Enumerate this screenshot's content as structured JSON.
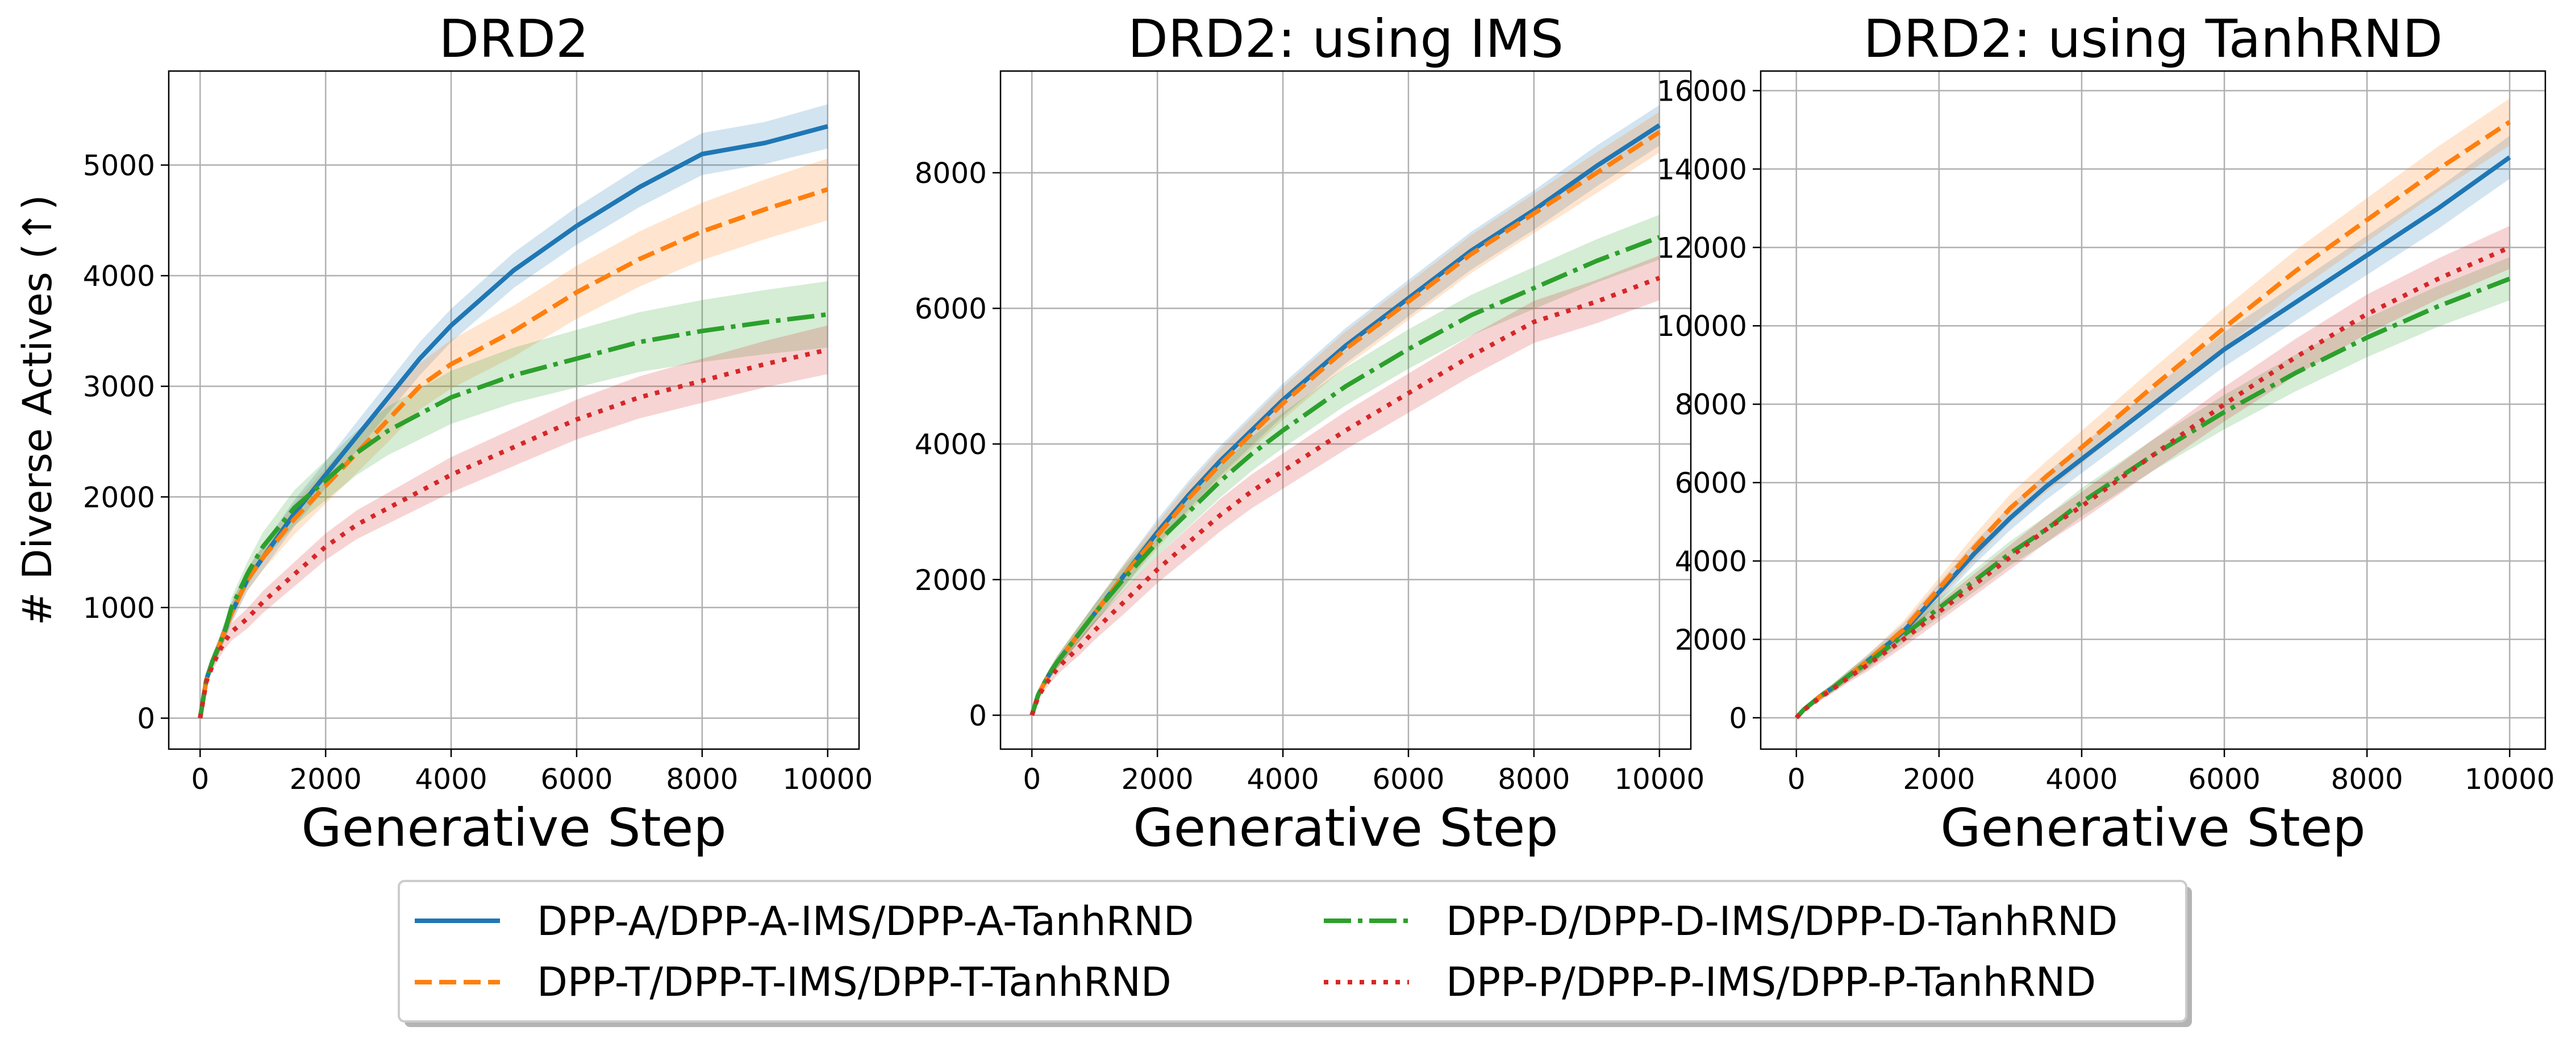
{
  "chart_data": [
    {
      "type": "line",
      "title": "DRD2",
      "xlabel": "Generative Step",
      "ylabel": "# Diverse Actives (↑)",
      "xlim": [
        -500,
        10500
      ],
      "ylim": [
        -280,
        5850
      ],
      "xticks": [
        0,
        2000,
        4000,
        6000,
        8000,
        10000
      ],
      "yticks": [
        0,
        1000,
        2000,
        3000,
        4000,
        5000
      ],
      "grid": true,
      "x": [
        0,
        100,
        200,
        300,
        400,
        500,
        750,
        1000,
        1500,
        2000,
        2500,
        3000,
        3500,
        4000,
        5000,
        6000,
        7000,
        8000,
        9000,
        10000
      ],
      "series": [
        {
          "name": "DPP-A/DPP-A-IMS/DPP-A-TanhRND",
          "color": "#1f77b4",
          "dash": "solid",
          "values": [
            0,
            350,
            520,
            650,
            800,
            950,
            1250,
            1450,
            1850,
            2200,
            2550,
            2900,
            3250,
            3550,
            4050,
            4450,
            4800,
            5100,
            5200,
            5350
          ],
          "band": [
            0,
            40,
            60,
            70,
            80,
            90,
            100,
            110,
            120,
            120,
            130,
            140,
            150,
            150,
            160,
            170,
            180,
            190,
            190,
            200
          ]
        },
        {
          "name": "DPP-T/DPP-T-IMS/DPP-T-TanhRND",
          "color": "#ff7f0e",
          "dash": "dashed",
          "values": [
            0,
            350,
            520,
            650,
            800,
            950,
            1250,
            1450,
            1800,
            2100,
            2400,
            2700,
            3000,
            3200,
            3500,
            3850,
            4150,
            4400,
            4600,
            4780
          ],
          "band": [
            0,
            40,
            60,
            70,
            80,
            90,
            100,
            110,
            140,
            160,
            180,
            200,
            210,
            220,
            230,
            240,
            250,
            260,
            270,
            280
          ]
        },
        {
          "name": "DPP-D/DPP-D-IMS/DPP-D-TanhRND",
          "color": "#2ca02c",
          "dash": "dashdot",
          "values": [
            0,
            350,
            520,
            650,
            800,
            1000,
            1300,
            1550,
            1900,
            2150,
            2400,
            2600,
            2750,
            2900,
            3100,
            3250,
            3400,
            3500,
            3580,
            3650
          ],
          "band": [
            0,
            40,
            60,
            70,
            80,
            90,
            110,
            130,
            160,
            180,
            200,
            220,
            230,
            240,
            250,
            260,
            270,
            280,
            290,
            300
          ]
        },
        {
          "name": "DPP-P/DPP-P-IMS/DPP-P-TanhRND",
          "color": "#d62728",
          "dash": "dotted",
          "values": [
            0,
            330,
            480,
            600,
            700,
            780,
            900,
            1050,
            1300,
            1550,
            1750,
            1900,
            2050,
            2200,
            2450,
            2700,
            2900,
            3050,
            3200,
            3330
          ],
          "band": [
            0,
            40,
            50,
            60,
            70,
            80,
            90,
            100,
            110,
            120,
            130,
            140,
            150,
            160,
            170,
            180,
            190,
            200,
            210,
            220
          ]
        }
      ]
    },
    {
      "type": "line",
      "title": "DRD2: using IMS",
      "xlabel": "Generative Step",
      "ylabel": "",
      "xlim": [
        -500,
        10500
      ],
      "ylim": [
        -500,
        9500
      ],
      "xticks": [
        0,
        2000,
        4000,
        6000,
        8000,
        10000
      ],
      "yticks": [
        0,
        2000,
        4000,
        6000,
        8000
      ],
      "grid": true,
      "x": [
        0,
        100,
        200,
        300,
        400,
        500,
        750,
        1000,
        1500,
        2000,
        2500,
        3000,
        3500,
        4000,
        5000,
        6000,
        7000,
        8000,
        9000,
        10000
      ],
      "series": [
        {
          "name": "DPP-A/DPP-A-IMS/DPP-A-TanhRND",
          "color": "#1f77b4",
          "dash": "solid",
          "values": [
            0,
            300,
            480,
            640,
            780,
            900,
            1200,
            1500,
            2100,
            2700,
            3250,
            3750,
            4200,
            4650,
            5450,
            6150,
            6850,
            7450,
            8100,
            8700
          ],
          "band": [
            0,
            50,
            70,
            80,
            90,
            100,
            120,
            140,
            170,
            190,
            210,
            220,
            230,
            240,
            260,
            270,
            280,
            290,
            300,
            300
          ]
        },
        {
          "name": "DPP-T/DPP-T-IMS/DPP-T-TanhRND",
          "color": "#ff7f0e",
          "dash": "dashed",
          "values": [
            0,
            300,
            480,
            640,
            780,
            900,
            1200,
            1500,
            2100,
            2650,
            3200,
            3700,
            4150,
            4600,
            5400,
            6100,
            6800,
            7400,
            8000,
            8600
          ],
          "band": [
            0,
            50,
            70,
            80,
            90,
            100,
            120,
            140,
            170,
            190,
            210,
            220,
            230,
            240,
            260,
            270,
            280,
            290,
            300,
            300
          ]
        },
        {
          "name": "DPP-D/DPP-D-IMS/DPP-D-TanhRND",
          "color": "#2ca02c",
          "dash": "dashdot",
          "values": [
            0,
            300,
            480,
            640,
            780,
            900,
            1200,
            1500,
            2050,
            2550,
            3000,
            3450,
            3850,
            4200,
            4850,
            5400,
            5900,
            6300,
            6700,
            7050
          ],
          "band": [
            0,
            50,
            70,
            80,
            90,
            100,
            120,
            140,
            180,
            200,
            220,
            240,
            250,
            260,
            280,
            290,
            300,
            310,
            320,
            330
          ]
        },
        {
          "name": "DPP-P/DPP-P-IMS/DPP-P-TanhRND",
          "color": "#d62728",
          "dash": "dotted",
          "values": [
            0,
            270,
            430,
            560,
            680,
            780,
            1000,
            1250,
            1700,
            2150,
            2550,
            2950,
            3300,
            3600,
            4200,
            4750,
            5300,
            5800,
            6100,
            6450
          ],
          "band": [
            0,
            50,
            70,
            80,
            90,
            100,
            120,
            140,
            180,
            200,
            220,
            240,
            250,
            260,
            280,
            290,
            300,
            310,
            320,
            330
          ]
        }
      ]
    },
    {
      "type": "line",
      "title": "DRD2: using TanhRND",
      "xlabel": "Generative Step",
      "ylabel": "",
      "xlim": [
        -500,
        10500
      ],
      "ylim": [
        -800,
        16500
      ],
      "xticks": [
        0,
        2000,
        4000,
        6000,
        8000,
        10000
      ],
      "yticks": [
        0,
        2000,
        4000,
        6000,
        8000,
        10000,
        12000,
        14000,
        16000
      ],
      "grid": true,
      "x": [
        0,
        100,
        200,
        300,
        400,
        500,
        750,
        1000,
        1500,
        2000,
        2500,
        3000,
        3500,
        4000,
        5000,
        6000,
        7000,
        8000,
        9000,
        10000
      ],
      "series": [
        {
          "name": "DPP-A/DPP-A-IMS/DPP-A-TanhRND",
          "color": "#1f77b4",
          "dash": "solid",
          "values": [
            0,
            200,
            350,
            500,
            630,
            750,
            1100,
            1450,
            2200,
            3200,
            4200,
            5100,
            5900,
            6600,
            8000,
            9400,
            10600,
            11800,
            13000,
            14300
          ],
          "band": [
            0,
            50,
            70,
            80,
            90,
            100,
            130,
            160,
            200,
            240,
            280,
            310,
            340,
            360,
            400,
            440,
            470,
            500,
            520,
            550
          ]
        },
        {
          "name": "DPP-T/DPP-T-IMS/DPP-T-TanhRND",
          "color": "#ff7f0e",
          "dash": "dashed",
          "values": [
            0,
            200,
            350,
            500,
            630,
            750,
            1100,
            1450,
            2250,
            3300,
            4350,
            5350,
            6150,
            6900,
            8450,
            9950,
            11400,
            12700,
            14000,
            15200
          ],
          "band": [
            0,
            50,
            70,
            80,
            90,
            100,
            130,
            160,
            220,
            270,
            320,
            360,
            390,
            420,
            460,
            500,
            530,
            560,
            580,
            600
          ]
        },
        {
          "name": "DPP-D/DPP-D-IMS/DPP-D-TanhRND",
          "color": "#2ca02c",
          "dash": "dashdot",
          "values": [
            0,
            200,
            350,
            500,
            630,
            750,
            1100,
            1400,
            2100,
            2800,
            3500,
            4200,
            4800,
            5500,
            6700,
            7800,
            8800,
            9700,
            10500,
            11200
          ],
          "band": [
            0,
            50,
            70,
            80,
            90,
            100,
            130,
            160,
            200,
            240,
            280,
            310,
            340,
            360,
            400,
            440,
            470,
            500,
            520,
            550
          ]
        },
        {
          "name": "DPP-P/DPP-P-IMS/DPP-P-TanhRND",
          "color": "#d62728",
          "dash": "dotted",
          "values": [
            0,
            190,
            330,
            470,
            600,
            720,
            1050,
            1350,
            2000,
            2700,
            3400,
            4100,
            4800,
            5400,
            6700,
            8000,
            9200,
            10300,
            11200,
            12000
          ],
          "band": [
            0,
            50,
            70,
            80,
            90,
            100,
            130,
            160,
            200,
            240,
            280,
            310,
            340,
            360,
            400,
            440,
            470,
            500,
            520,
            550
          ]
        }
      ]
    }
  ],
  "legend": {
    "entries": [
      {
        "label": "DPP-A/DPP-A-IMS/DPP-A-TanhRND",
        "color": "#1f77b4",
        "dash": "solid"
      },
      {
        "label": "DPP-T/DPP-T-IMS/DPP-T-TanhRND",
        "color": "#ff7f0e",
        "dash": "dashed"
      },
      {
        "label": "DPP-D/DPP-D-IMS/DPP-D-TanhRND",
        "color": "#2ca02c",
        "dash": "dashdot"
      },
      {
        "label": "DPP-P/DPP-P-IMS/DPP-P-TanhRND",
        "color": "#d62728",
        "dash": "dotted"
      }
    ],
    "placement": "bottom-center"
  }
}
